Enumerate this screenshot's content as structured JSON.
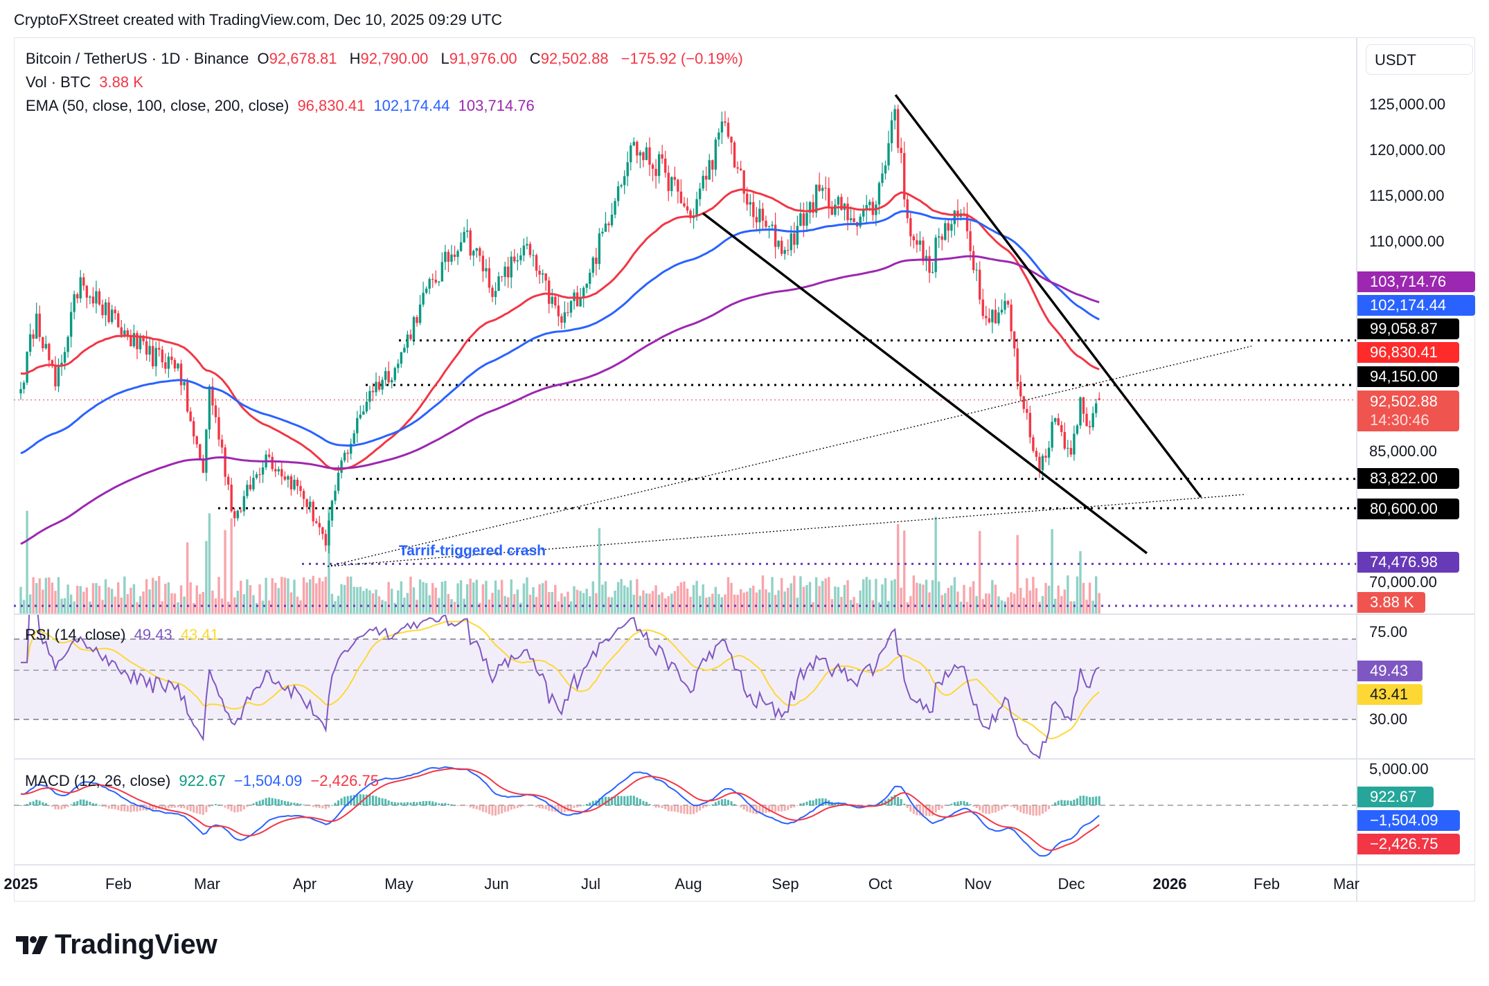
{
  "credit": "CryptoFXStreet created with TradingView.com, Dec 10, 2025 09:29 UTC",
  "legend": {
    "symbol": "Bitcoin / TetherUS · 1D · Binance",
    "o_label": "O",
    "open": "92,678.81",
    "h_label": "H",
    "high": "92,790.00",
    "l_label": "L",
    "low": "91,976.00",
    "c_label": "C",
    "close": "92,502.88",
    "change": "−175.92 (−0.19%)",
    "vol_label": "Vol · BTC",
    "vol": "3.88 K",
    "ema_label": "EMA (50, close, 100, close, 200, close)",
    "ema50": "96,830.41",
    "ema100": "102,174.44",
    "ema200": "103,714.76",
    "rsi_label": "RSI (14, close)",
    "rsi": "49.43",
    "rsi_ma": "43.41",
    "macd_label": "MACD (12, 26, close)",
    "macd_hist": "922.67",
    "macd": "−1,504.09",
    "macd_signal": "−2,426.75"
  },
  "currency_button": "USDT",
  "price_ticks": [
    "125,000.00",
    "120,000.00",
    "115,000.00",
    "110,000.00",
    "85,000.00",
    "70,000.00"
  ],
  "rsi_ticks": [
    "75.00",
    "30.00"
  ],
  "macd_ticks": [
    "5,000.00"
  ],
  "price_tags": {
    "ema200": "103,714.76",
    "ema100": "102,174.44",
    "level_99": "99,058.87",
    "ema50": "96,830.41",
    "level_94": "94,150.00",
    "last": "92,502.88",
    "countdown": "14:30:46",
    "level_83": "83,822.00",
    "level_80": "80,600.00",
    "level_74": "74,476.98",
    "vol": "3.88 K",
    "rsi": "49.43",
    "rsi_ma": "43.41",
    "macd_hist": "922.67",
    "macd": "−1,504.09",
    "macd_signal": "−2,426.75"
  },
  "annotation": "Tarrif-triggered crash",
  "time_axis": [
    "2025",
    "Feb",
    "Mar",
    "Apr",
    "May",
    "Jun",
    "Jul",
    "Aug",
    "Sep",
    "Oct",
    "Nov",
    "Dec",
    "2026",
    "Feb",
    "Mar"
  ],
  "logo_text": "TradingView",
  "colors": {
    "up": "#089981",
    "down": "#f23645",
    "ema50": "#f23645",
    "ema100": "#2962ff",
    "ema200": "#9c27b0",
    "rsi": "#7e57c2",
    "rsi_ma": "#fdd835",
    "macd": "#2962ff",
    "signal": "#f23645",
    "level_purple": "#673ab7"
  },
  "chart_data": {
    "type": "candlestick",
    "symbol": "BTCUSDT",
    "interval": "1D",
    "ylim": [
      68000,
      128000
    ],
    "levels": [
      99058.87,
      94150.0,
      83822.0,
      80600.0,
      74476.98
    ],
    "closes_approx": [
      [
        "2025-01-01",
        93700
      ],
      [
        "2025-01-06",
        102000
      ],
      [
        "2025-01-12",
        94000
      ],
      [
        "2025-01-20",
        106000
      ],
      [
        "2025-01-26",
        103000
      ],
      [
        "2025-02-01",
        100500
      ],
      [
        "2025-02-10",
        97500
      ],
      [
        "2025-02-20",
        96500
      ],
      [
        "2025-02-25",
        88500
      ],
      [
        "2025-02-28",
        84500
      ],
      [
        "2025-03-02",
        94000
      ],
      [
        "2025-03-10",
        79500
      ],
      [
        "2025-03-20",
        86500
      ],
      [
        "2025-03-31",
        82500
      ],
      [
        "2025-04-06",
        78500
      ],
      [
        "2025-04-08",
        76500
      ],
      [
        "2025-04-12",
        84500
      ],
      [
        "2025-04-22",
        93500
      ],
      [
        "2025-05-01",
        96500
      ],
      [
        "2025-05-08",
        103000
      ],
      [
        "2025-05-22",
        111000
      ],
      [
        "2025-06-01",
        104500
      ],
      [
        "2025-06-10",
        109500
      ],
      [
        "2025-06-22",
        101000
      ],
      [
        "2025-07-01",
        106500
      ],
      [
        "2025-07-10",
        116000
      ],
      [
        "2025-07-14",
        120500
      ],
      [
        "2025-07-25",
        117500
      ],
      [
        "2025-08-02",
        112500
      ],
      [
        "2025-08-13",
        123000
      ],
      [
        "2025-08-20",
        114000
      ],
      [
        "2025-09-01",
        109000
      ],
      [
        "2025-09-12",
        115500
      ],
      [
        "2025-09-22",
        112500
      ],
      [
        "2025-09-30",
        114000
      ],
      [
        "2025-10-06",
        124500
      ],
      [
        "2025-10-10",
        112500
      ],
      [
        "2025-10-17",
        106500
      ],
      [
        "2025-10-20",
        110500
      ],
      [
        "2025-10-28",
        113000
      ],
      [
        "2025-11-04",
        101500
      ],
      [
        "2025-11-11",
        103000
      ],
      [
        "2025-11-14",
        94500
      ],
      [
        "2025-11-21",
        84800
      ],
      [
        "2025-11-26",
        90500
      ],
      [
        "2025-12-01",
        86500
      ],
      [
        "2025-12-04",
        92800
      ],
      [
        "2025-12-07",
        89500
      ],
      [
        "2025-12-10",
        92502.88
      ]
    ],
    "ema_last": {
      "50": 96830.41,
      "100": 102174.44,
      "200": 103714.76
    },
    "rsi_last": 49.43,
    "rsi_ma_last": 43.41,
    "macd_last": {
      "macd": -1504.09,
      "signal": -2426.75,
      "hist": 922.67
    }
  }
}
